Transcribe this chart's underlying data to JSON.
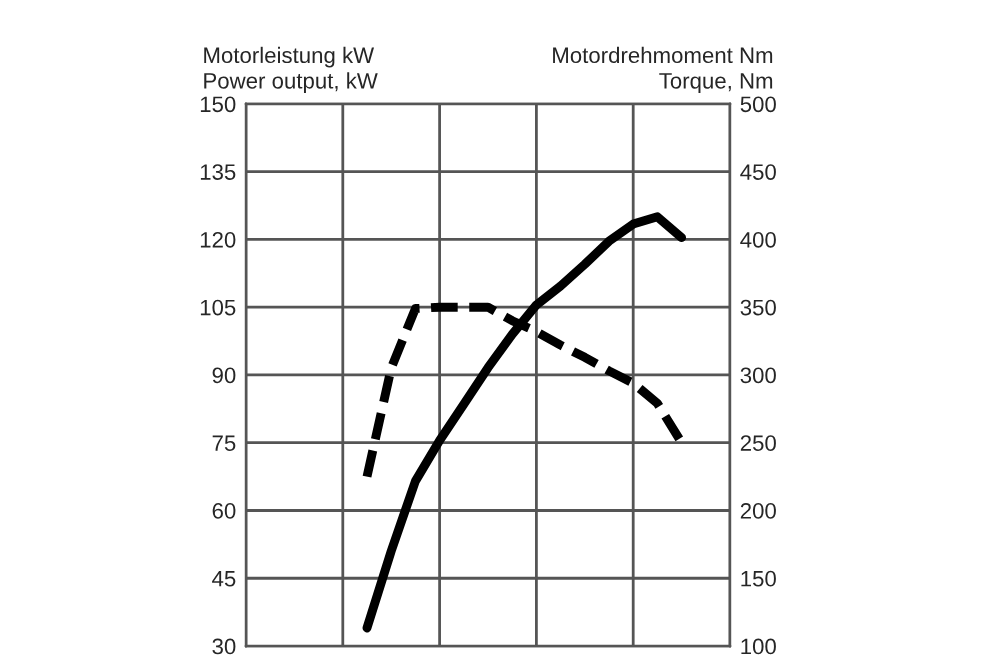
{
  "chart_data": {
    "type": "line",
    "ylabel": "Motorleistung kW\nPower output, kW",
    "y2label": "Motordrehmoment Nm\nTorque, Nm",
    "categories": [
      null,
      null,
      null,
      null,
      null,
      null,
      null,
      null,
      null,
      null,
      null,
      null,
      null,
      null,
      null,
      null,
      null,
      null,
      null,
      null,
      null
    ],
    "ylim": [
      30,
      150
    ],
    "yticks": [
      30,
      45,
      60,
      75,
      90,
      105,
      120,
      135,
      150
    ],
    "y2lim": [
      100,
      500
    ],
    "y2ticks": [
      100,
      150,
      200,
      250,
      300,
      350,
      400,
      450,
      500
    ],
    "grid": true,
    "marker": "none",
    "series": [
      {
        "color": "#000000",
        "line_style": "solid",
        "values": [
          null,
          null,
          null,
          null,
          null,
          34,
          51,
          66.5,
          75.5,
          83.5,
          91.6,
          99,
          105.5,
          109.7,
          114.5,
          119.6,
          123.4,
          125,
          120.4,
          null,
          null
        ]
      },
      {
        "color": "#000000",
        "line_style": "dashed",
        "axis": "y2",
        "values": [
          null,
          null,
          null,
          null,
          null,
          225,
          305,
          349,
          350,
          350,
          350,
          340,
          332,
          322,
          313,
          303,
          294,
          279,
          250,
          null,
          null
        ]
      }
    ]
  }
}
